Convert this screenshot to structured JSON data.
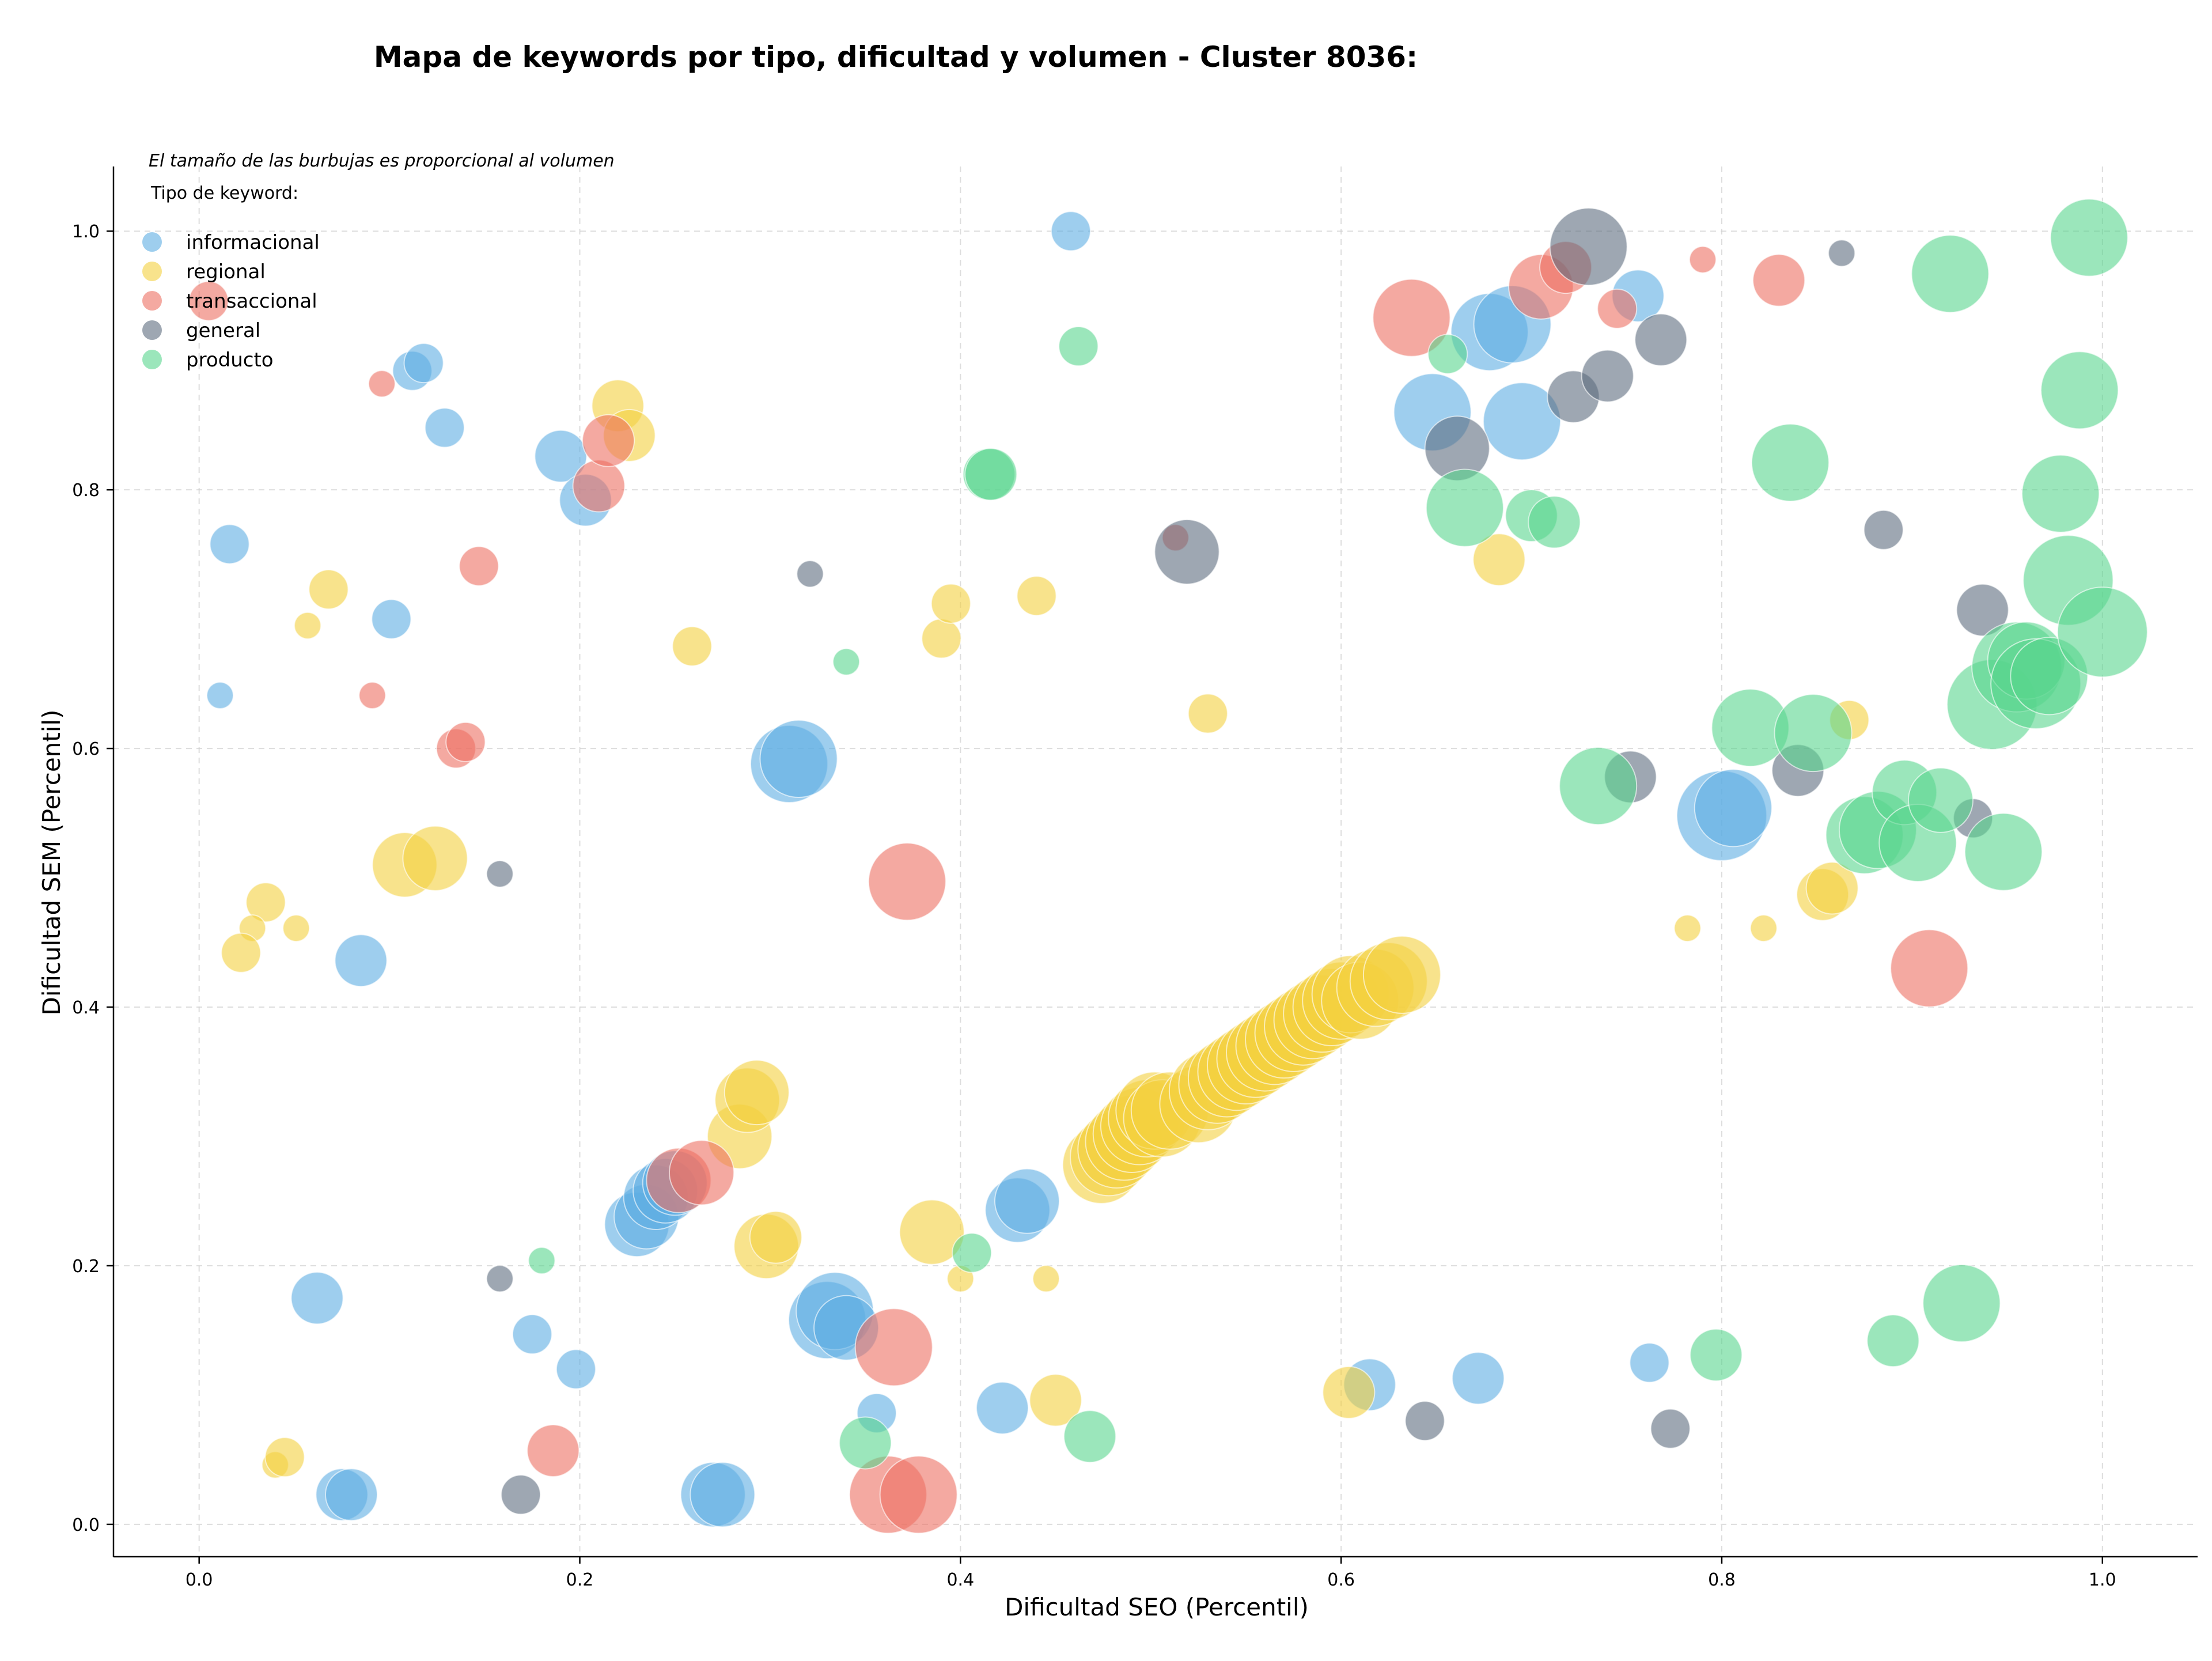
{
  "chart_data": {
    "type": "scatter",
    "title": "Mapa de keywords por tipo, dificultad y volumen - Cluster 8036:",
    "xlabel": "Dificultad SEO (Percentil)",
    "ylabel": "Dificultad SEM (Percentil)",
    "note": "El tamaño de las burbujas es proporcional al volumen",
    "legend_title": "Tipo de keyword:",
    "legend_position": "top-left",
    "grid": true,
    "xlim": [
      -0.045,
      1.05
    ],
    "ylim": [
      -0.025,
      1.05
    ],
    "xticks": [
      0.0,
      0.2,
      0.4,
      0.6,
      0.8,
      1.0
    ],
    "yticks": [
      0.0,
      0.2,
      0.4,
      0.6,
      0.8,
      1.0
    ],
    "xtick_labels": [
      "0.0",
      "0.2",
      "0.4",
      "0.6",
      "0.8",
      "1.0"
    ],
    "ytick_labels": [
      "0.0",
      "0.2",
      "0.4",
      "0.6",
      "0.8",
      "1.0"
    ],
    "series": [
      {
        "name": "informacional",
        "color": "#5dade2",
        "points": [
          [
            0.458,
            1.0,
            2
          ],
          [
            0.016,
            0.758,
            2
          ],
          [
            0.112,
            0.892,
            2
          ],
          [
            0.118,
            0.898,
            2
          ],
          [
            0.129,
            0.848,
            2
          ],
          [
            0.101,
            0.7,
            2
          ],
          [
            0.011,
            0.641,
            1
          ],
          [
            0.19,
            0.826,
            3
          ],
          [
            0.203,
            0.792,
            3
          ],
          [
            0.085,
            0.436,
            3
          ],
          [
            0.31,
            0.588,
            5
          ],
          [
            0.315,
            0.592,
            5
          ],
          [
            0.062,
            0.175,
            3
          ],
          [
            0.175,
            0.147,
            2
          ],
          [
            0.198,
            0.12,
            2
          ],
          [
            0.23,
            0.232,
            4
          ],
          [
            0.235,
            0.238,
            4
          ],
          [
            0.24,
            0.253,
            4
          ],
          [
            0.245,
            0.258,
            4
          ],
          [
            0.25,
            0.264,
            4
          ],
          [
            0.33,
            0.158,
            5
          ],
          [
            0.334,
            0.165,
            5
          ],
          [
            0.34,
            0.152,
            4
          ],
          [
            0.356,
            0.086,
            2
          ],
          [
            0.422,
            0.09,
            3
          ],
          [
            0.43,
            0.243,
            4
          ],
          [
            0.435,
            0.25,
            4
          ],
          [
            0.075,
            0.023,
            3
          ],
          [
            0.08,
            0.023,
            3
          ],
          [
            0.27,
            0.023,
            4
          ],
          [
            0.275,
            0.023,
            4
          ],
          [
            0.615,
            0.108,
            3
          ],
          [
            0.672,
            0.113,
            3
          ],
          [
            0.762,
            0.125,
            2
          ],
          [
            0.648,
            0.86,
            5
          ],
          [
            0.678,
            0.922,
            5
          ],
          [
            0.69,
            0.928,
            5
          ],
          [
            0.695,
            0.853,
            5
          ],
          [
            0.756,
            0.95,
            3
          ],
          [
            0.8,
            0.548,
            6
          ],
          [
            0.806,
            0.554,
            5
          ]
        ]
      },
      {
        "name": "regional",
        "color": "#f4d03f",
        "points": [
          [
            0.068,
            0.723,
            2
          ],
          [
            0.057,
            0.695,
            1
          ],
          [
            0.035,
            0.481,
            2
          ],
          [
            0.028,
            0.461,
            1
          ],
          [
            0.051,
            0.461,
            1
          ],
          [
            0.022,
            0.442,
            2
          ],
          [
            0.108,
            0.51,
            4
          ],
          [
            0.124,
            0.515,
            4
          ],
          [
            0.22,
            0.865,
            3
          ],
          [
            0.226,
            0.842,
            3
          ],
          [
            0.259,
            0.679,
            2
          ],
          [
            0.39,
            0.685,
            2
          ],
          [
            0.395,
            0.712,
            2
          ],
          [
            0.44,
            0.718,
            2
          ],
          [
            0.53,
            0.627,
            2
          ],
          [
            0.04,
            0.046,
            1
          ],
          [
            0.045,
            0.052,
            2
          ],
          [
            0.284,
            0.3,
            4
          ],
          [
            0.288,
            0.328,
            4
          ],
          [
            0.293,
            0.334,
            4
          ],
          [
            0.298,
            0.215,
            4
          ],
          [
            0.303,
            0.222,
            3
          ],
          [
            0.385,
            0.226,
            4
          ],
          [
            0.4,
            0.19,
            1
          ],
          [
            0.445,
            0.19,
            1
          ],
          [
            0.45,
            0.096,
            3
          ],
          [
            0.604,
            0.102,
            3
          ],
          [
            0.683,
            0.746,
            3
          ],
          [
            0.782,
            0.461,
            1
          ],
          [
            0.822,
            0.461,
            1
          ],
          [
            0.853,
            0.487,
            3
          ],
          [
            0.858,
            0.492,
            3
          ],
          [
            0.867,
            0.622,
            2
          ],
          [
            0.474,
            0.278,
            5
          ],
          [
            0.478,
            0.284,
            5
          ],
          [
            0.482,
            0.29,
            5
          ],
          [
            0.486,
            0.296,
            5
          ],
          [
            0.49,
            0.302,
            5
          ],
          [
            0.494,
            0.308,
            5
          ],
          [
            0.498,
            0.314,
            5
          ],
          [
            0.502,
            0.32,
            5
          ],
          [
            0.506,
            0.314,
            5
          ],
          [
            0.51,
            0.32,
            5
          ],
          [
            0.525,
            0.325,
            5
          ],
          [
            0.53,
            0.335,
            5
          ],
          [
            0.535,
            0.34,
            5
          ],
          [
            0.54,
            0.345,
            5
          ],
          [
            0.545,
            0.35,
            5
          ],
          [
            0.55,
            0.355,
            5
          ],
          [
            0.555,
            0.36,
            5
          ],
          [
            0.56,
            0.365,
            5
          ],
          [
            0.565,
            0.37,
            5
          ],
          [
            0.57,
            0.375,
            5
          ],
          [
            0.575,
            0.38,
            5
          ],
          [
            0.58,
            0.385,
            5
          ],
          [
            0.585,
            0.39,
            5
          ],
          [
            0.59,
            0.395,
            5
          ],
          [
            0.595,
            0.4,
            5
          ],
          [
            0.6,
            0.405,
            5
          ],
          [
            0.605,
            0.41,
            5
          ],
          [
            0.61,
            0.405,
            5
          ],
          [
            0.618,
            0.415,
            5
          ],
          [
            0.625,
            0.42,
            5
          ],
          [
            0.632,
            0.425,
            5
          ]
        ]
      },
      {
        "name": "transaccional",
        "color": "#ec7063",
        "points": [
          [
            0.005,
            0.946,
            2
          ],
          [
            0.096,
            0.882,
            1
          ],
          [
            0.091,
            0.641,
            1
          ],
          [
            0.147,
            0.741,
            2
          ],
          [
            0.135,
            0.6,
            2
          ],
          [
            0.14,
            0.605,
            2
          ],
          [
            0.21,
            0.803,
            3
          ],
          [
            0.215,
            0.838,
            3
          ],
          [
            0.372,
            0.497,
            5
          ],
          [
            0.252,
            0.266,
            4
          ],
          [
            0.264,
            0.272,
            4
          ],
          [
            0.186,
            0.057,
            3
          ],
          [
            0.365,
            0.137,
            5
          ],
          [
            0.362,
            0.023,
            5
          ],
          [
            0.378,
            0.023,
            5
          ],
          [
            0.513,
            0.763,
            1
          ],
          [
            0.637,
            0.933,
            5
          ],
          [
            0.705,
            0.957,
            4
          ],
          [
            0.718,
            0.972,
            3
          ],
          [
            0.745,
            0.94,
            2
          ],
          [
            0.79,
            0.978,
            1
          ],
          [
            0.83,
            0.962,
            3
          ],
          [
            0.909,
            0.43,
            5
          ]
        ]
      },
      {
        "name": "general",
        "color": "#5d6d7e",
        "points": [
          [
            0.158,
            0.503,
            1
          ],
          [
            0.158,
            0.19,
            1
          ],
          [
            0.169,
            0.023,
            2
          ],
          [
            0.321,
            0.735,
            1
          ],
          [
            0.519,
            0.752,
            4
          ],
          [
            0.644,
            0.08,
            2
          ],
          [
            0.661,
            0.832,
            4
          ],
          [
            0.722,
            0.872,
            3
          ],
          [
            0.73,
            0.988,
            5
          ],
          [
            0.74,
            0.888,
            3
          ],
          [
            0.752,
            0.578,
            3
          ],
          [
            0.768,
            0.916,
            3
          ],
          [
            0.773,
            0.074,
            2
          ],
          [
            0.84,
            0.583,
            3
          ],
          [
            0.863,
            0.983,
            1
          ],
          [
            0.885,
            0.769,
            2
          ],
          [
            0.932,
            0.546,
            2
          ],
          [
            0.937,
            0.707,
            3
          ]
        ]
      },
      {
        "name": "producto",
        "color": "#58d68d",
        "points": [
          [
            0.18,
            0.204,
            1
          ],
          [
            0.34,
            0.667,
            1
          ],
          [
            0.35,
            0.063,
            3
          ],
          [
            0.406,
            0.21,
            2
          ],
          [
            0.415,
            0.812,
            3
          ],
          [
            0.416,
            0.812,
            3
          ],
          [
            0.462,
            0.911,
            2
          ],
          [
            0.468,
            0.068,
            3
          ],
          [
            0.656,
            0.905,
            2
          ],
          [
            0.665,
            0.786,
            5
          ],
          [
            0.7,
            0.78,
            3
          ],
          [
            0.712,
            0.775,
            3
          ],
          [
            0.735,
            0.571,
            5
          ],
          [
            0.797,
            0.131,
            3
          ],
          [
            0.815,
            0.616,
            5
          ],
          [
            0.836,
            0.821,
            5
          ],
          [
            0.848,
            0.612,
            5
          ],
          [
            0.875,
            0.533,
            5
          ],
          [
            0.882,
            0.537,
            5
          ],
          [
            0.89,
            0.142,
            3
          ],
          [
            0.896,
            0.566,
            4
          ],
          [
            0.903,
            0.527,
            5
          ],
          [
            0.915,
            0.56,
            4
          ],
          [
            0.92,
            0.967,
            5
          ],
          [
            0.926,
            0.171,
            5
          ],
          [
            0.942,
            0.634,
            6
          ],
          [
            0.948,
            0.52,
            5
          ],
          [
            0.955,
            0.663,
            6
          ],
          [
            0.96,
            0.668,
            5
          ],
          [
            0.965,
            0.65,
            6
          ],
          [
            0.972,
            0.656,
            5
          ],
          [
            0.978,
            0.797,
            5
          ],
          [
            0.982,
            0.73,
            6
          ],
          [
            0.988,
            0.877,
            5
          ],
          [
            0.993,
            0.995,
            5
          ],
          [
            1.0,
            0.69,
            6
          ]
        ]
      }
    ]
  }
}
